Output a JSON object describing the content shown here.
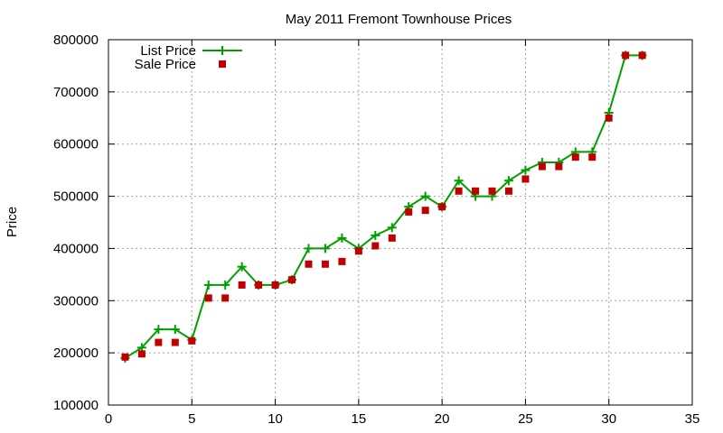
{
  "chart_data": {
    "type": "line",
    "title": "May 2011 Fremont Townhouse Prices",
    "xlabel": "",
    "ylabel": "Price",
    "xlim": [
      0,
      35
    ],
    "ylim": [
      100000,
      800000
    ],
    "x_ticks": [
      0,
      5,
      10,
      15,
      20,
      25,
      30,
      35
    ],
    "y_ticks": [
      100000,
      200000,
      300000,
      400000,
      500000,
      600000,
      700000,
      800000
    ],
    "x_tick_labels": [
      "0",
      "5",
      "10",
      "15",
      "20",
      "25",
      "30",
      "35"
    ],
    "y_tick_labels": [
      "100000",
      "200000",
      "300000",
      "400000",
      "500000",
      "600000",
      "700000",
      "800000"
    ],
    "grid": true,
    "legend_position": "top-left",
    "series": [
      {
        "name": "List Price",
        "style": "line-with-plus-markers",
        "color": "#00a000",
        "x": [
          1,
          2,
          3,
          4,
          5,
          6,
          7,
          8,
          9,
          10,
          11,
          12,
          13,
          14,
          15,
          16,
          17,
          18,
          19,
          20,
          21,
          22,
          23,
          24,
          25,
          26,
          27,
          28,
          29,
          30,
          31,
          32
        ],
        "y": [
          190000,
          210000,
          245000,
          245000,
          225000,
          330000,
          330000,
          365000,
          330000,
          330000,
          340000,
          400000,
          400000,
          420000,
          400000,
          425000,
          440000,
          480000,
          500000,
          480000,
          530000,
          500000,
          500000,
          530000,
          550000,
          565000,
          565000,
          585000,
          585000,
          660000,
          770000,
          770000
        ]
      },
      {
        "name": "Sale Price",
        "style": "square-markers",
        "color": "#c00000",
        "x": [
          1,
          2,
          3,
          4,
          5,
          6,
          7,
          8,
          9,
          10,
          11,
          12,
          13,
          14,
          15,
          16,
          17,
          18,
          19,
          20,
          21,
          22,
          23,
          24,
          25,
          26,
          27,
          28,
          29,
          30,
          31,
          32
        ],
        "y": [
          192000,
          198000,
          220000,
          220000,
          223000,
          305000,
          305000,
          330000,
          330000,
          330000,
          340000,
          370000,
          370000,
          375000,
          395000,
          405000,
          420000,
          470000,
          473000,
          480000,
          510000,
          510000,
          510000,
          510000,
          533000,
          557000,
          557000,
          575000,
          575000,
          650000,
          770000,
          770000
        ]
      }
    ]
  }
}
